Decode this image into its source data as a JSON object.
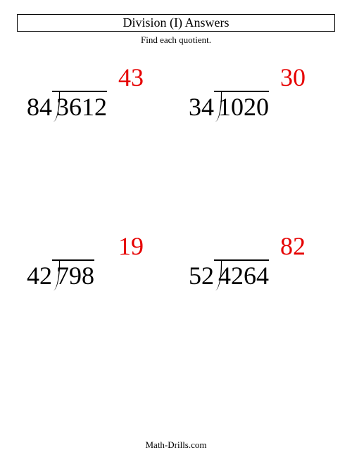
{
  "title": "Division (I) Answers",
  "subtitle": "Find each quotient.",
  "footer": "Math-Drills.com",
  "colors": {
    "quotient": "#e60000",
    "text": "#000000",
    "background": "#ffffff"
  },
  "typography": {
    "title_fontsize": 18,
    "subtitle_fontsize": 13,
    "problem_fontsize": 36,
    "font_family": "Times New Roman"
  },
  "problems": [
    {
      "divisor": "84",
      "dividend": "3612",
      "quotient": "43"
    },
    {
      "divisor": "34",
      "dividend": "1020",
      "quotient": "30"
    },
    {
      "divisor": "42",
      "dividend": "798",
      "quotient": "19"
    },
    {
      "divisor": "52",
      "dividend": "4264",
      "quotient": "82"
    }
  ]
}
